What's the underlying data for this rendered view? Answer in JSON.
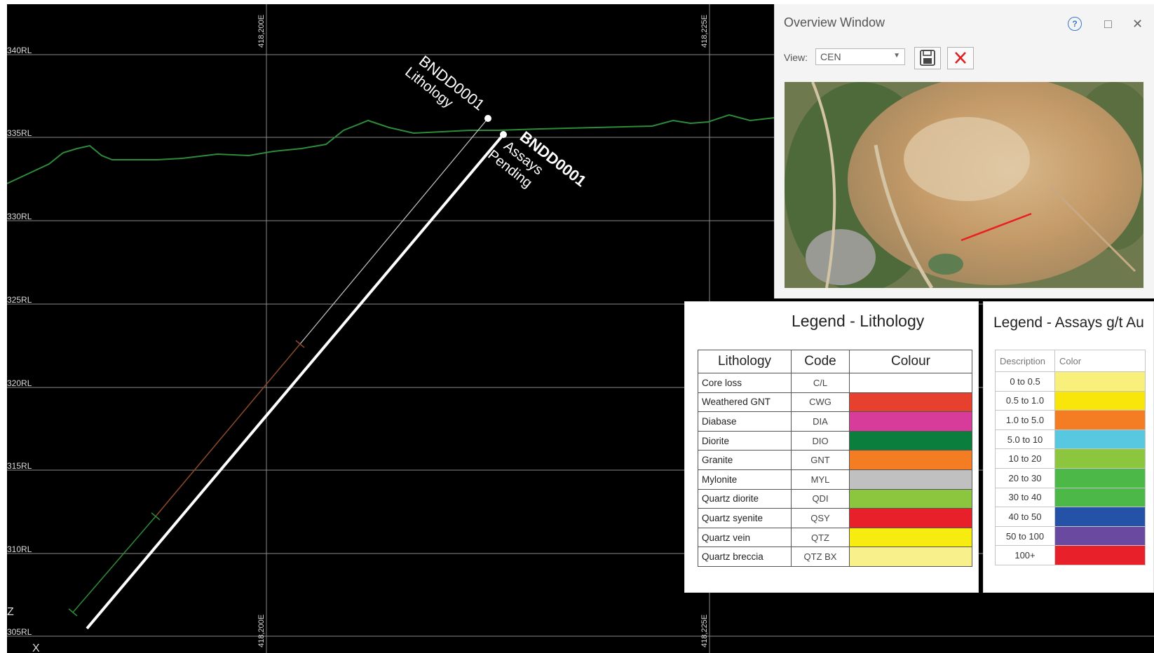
{
  "section": {
    "rl_labels": [
      "340RL",
      "335RL",
      "330RL",
      "325RL",
      "320RL",
      "315RL",
      "310RL",
      "305RL"
    ],
    "easting_labels": [
      "418,200E",
      "418,225E"
    ],
    "axis_marker": "Z",
    "corner_marker": "X",
    "hole_lithology_label": [
      "BNDD0001",
      "Lithology"
    ],
    "hole_assays_label": [
      "BNDD0001",
      "Assays",
      "Pending"
    ],
    "colors": {
      "topography": "#2e8b3a",
      "lithology_trace": "#c0c0c0",
      "assay_trace": "#ffffff"
    }
  },
  "overview": {
    "title": "Overview Window",
    "help_icon": "question-icon",
    "maximize_icon": "□",
    "close_icon": "✕",
    "view_label": "View:",
    "view_value": "CEN",
    "save_icon": "save-icon",
    "cancel_icon": "red-x-icon"
  },
  "legend_lithology": {
    "title": "Legend - Lithology",
    "headers": [
      "Lithology",
      "Code",
      "Colour"
    ],
    "rows": [
      {
        "name": "Core loss",
        "code": "C/L",
        "color": "#ffffff"
      },
      {
        "name": "Weathered GNT",
        "code": "CWG",
        "color": "#e8402e"
      },
      {
        "name": "Diabase",
        "code": "DIA",
        "color": "#d83c9a"
      },
      {
        "name": "Diorite",
        "code": "DIO",
        "color": "#0a7e3c"
      },
      {
        "name": "Granite",
        "code": "GNT",
        "color": "#f47d24"
      },
      {
        "name": "Mylonite",
        "code": "MYL",
        "color": "#c0c0c0"
      },
      {
        "name": "Quartz diorite",
        "code": "QDI",
        "color": "#8cc63f"
      },
      {
        "name": "Quartz syenite",
        "code": "QSY",
        "color": "#e8202a"
      },
      {
        "name": "Quartz vein",
        "code": "QTZ",
        "color": "#f6ec10"
      },
      {
        "name": "Quartz breccia",
        "code": "QTZ BX",
        "color": "#f8f08a"
      }
    ]
  },
  "legend_assays": {
    "title": "Legend - Assays g/t Au",
    "headers": [
      "Description",
      "Color"
    ],
    "rows": [
      {
        "desc": "0 to 0.5",
        "color": "#f8f07a"
      },
      {
        "desc": "0.5 to 1.0",
        "color": "#f8e60a"
      },
      {
        "desc": "1.0 to 5.0",
        "color": "#f47d24"
      },
      {
        "desc": "5.0 to 10",
        "color": "#58c8e0"
      },
      {
        "desc": "10 to 20",
        "color": "#8cc63f"
      },
      {
        "desc": "20 to 30",
        "color": "#4cb848"
      },
      {
        "desc": "30 to 40",
        "color": "#4cb848"
      },
      {
        "desc": "40 to 50",
        "color": "#2452a6"
      },
      {
        "desc": "50 to 100",
        "color": "#6a4aa0"
      },
      {
        "desc": "100+",
        "color": "#e8202a"
      }
    ]
  }
}
